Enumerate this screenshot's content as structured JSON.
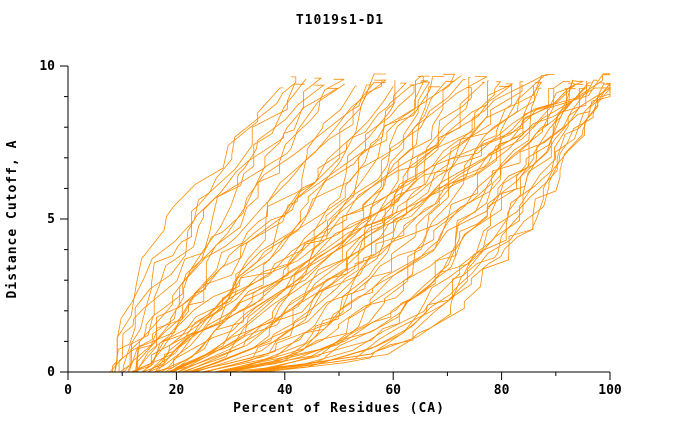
{
  "figure": {
    "title": "T1019s1-D1",
    "xlabel": "Percent of Residues (CA)",
    "ylabel": "Distance Cutoff, A",
    "background": "#ffffff",
    "axis_color": "#000000",
    "curve_color": "#ff8c00"
  },
  "chart_data": {
    "type": "line",
    "title": "T1019s1-D1",
    "xlabel": "Percent of Residues (CA)",
    "ylabel": "Distance Cutoff, A",
    "xlim": [
      0,
      100
    ],
    "ylim": [
      0,
      10
    ],
    "xticks": [
      0,
      20,
      40,
      60,
      80,
      100
    ],
    "yticks": [
      0,
      5,
      10
    ],
    "grid": false,
    "legend": "none",
    "series_count": 70,
    "series_color": "#ff8c00",
    "series_param_format": [
      "x_percent_at_cutoff_0",
      "x_percent_at_top_cutoff",
      "shape_exponent"
    ],
    "series_params": [
      [
        8,
        40,
        1.6
      ],
      [
        10,
        41,
        1.4
      ],
      [
        9,
        43,
        1.5
      ],
      [
        12,
        44,
        1.2
      ],
      [
        11,
        45,
        1.3
      ],
      [
        13,
        46,
        1.1
      ],
      [
        10,
        48,
        1.4
      ],
      [
        14,
        50,
        1.0
      ],
      [
        12,
        52,
        1.2
      ],
      [
        15,
        54,
        0.9
      ],
      [
        9,
        55,
        1.3
      ],
      [
        16,
        56,
        0.8
      ],
      [
        13,
        57,
        1.1
      ],
      [
        18,
        58,
        0.7
      ],
      [
        11,
        59,
        1.2
      ],
      [
        20,
        60,
        0.6
      ],
      [
        14,
        61,
        1.0
      ],
      [
        22,
        62,
        0.55
      ],
      [
        16,
        63,
        0.9
      ],
      [
        24,
        64,
        0.5
      ],
      [
        12,
        65,
        1.1
      ],
      [
        26,
        66,
        0.45
      ],
      [
        18,
        67,
        0.8
      ],
      [
        28,
        68,
        0.5
      ],
      [
        15,
        69,
        1.0
      ],
      [
        30,
        70,
        0.45
      ],
      [
        20,
        71,
        0.7
      ],
      [
        10,
        72,
        1.2
      ],
      [
        24,
        73,
        0.55
      ],
      [
        17,
        74,
        0.9
      ],
      [
        28,
        75,
        0.5
      ],
      [
        13,
        76,
        1.05
      ],
      [
        22,
        77,
        0.65
      ],
      [
        32,
        78,
        0.42
      ],
      [
        19,
        79,
        0.85
      ],
      [
        26,
        80,
        0.5
      ],
      [
        15,
        81,
        1.0
      ],
      [
        30,
        82,
        0.45
      ],
      [
        21,
        83,
        0.75
      ],
      [
        34,
        84,
        0.4
      ],
      [
        18,
        85,
        0.9
      ],
      [
        27,
        86,
        0.5
      ],
      [
        12,
        87,
        1.05
      ],
      [
        31,
        88,
        0.42
      ],
      [
        23,
        89,
        0.7
      ],
      [
        35,
        90,
        0.38
      ],
      [
        16,
        90,
        0.95
      ],
      [
        29,
        91,
        0.45
      ],
      [
        20,
        92,
        0.8
      ],
      [
        33,
        92,
        0.4
      ],
      [
        14,
        93,
        1.0
      ],
      [
        25,
        93,
        0.6
      ],
      [
        36,
        94,
        0.36
      ],
      [
        19,
        94,
        0.85
      ],
      [
        28,
        95,
        0.48
      ],
      [
        11,
        95,
        1.1
      ],
      [
        32,
        96,
        0.4
      ],
      [
        22,
        96,
        0.7
      ],
      [
        35,
        97,
        0.36
      ],
      [
        17,
        97,
        0.9
      ],
      [
        26,
        98,
        0.55
      ],
      [
        30,
        98,
        0.42
      ],
      [
        13,
        99,
        1.0
      ],
      [
        24,
        99,
        0.65
      ],
      [
        34,
        100,
        0.38
      ],
      [
        20,
        100,
        0.8
      ],
      [
        28,
        100,
        0.5
      ],
      [
        15,
        100,
        0.95
      ],
      [
        31,
        100,
        0.42
      ],
      [
        9,
        100,
        1.15
      ]
    ]
  }
}
